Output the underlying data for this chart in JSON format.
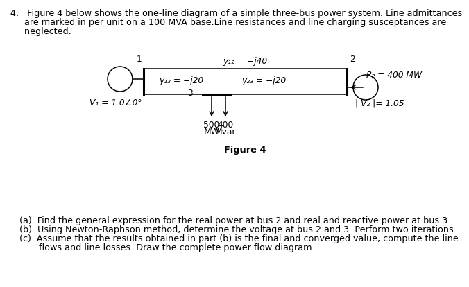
{
  "figure_label": "Figure 4",
  "bus1_label": "1",
  "bus2_label": "2",
  "bus3_label": "3",
  "y12_label": "y₁₂ = −j40",
  "y13_label": "y₁₃ = −j20",
  "y23_label": "y₂₃ = −j20",
  "V1_label": "V₁ = 1.0∠0°",
  "V2_label": "| V₂ |= 1.05",
  "P2_label": "P₂ = 400 MW",
  "P3_label": "500",
  "P3_unit": "MW",
  "Q3_label": "400",
  "Q3_unit": "Mvar",
  "questions": [
    "(a)  Find the general expression for the real power at bus 2 and real and reactive power at bus 3.",
    "(b)  Using Newton-Raphson method, determine the voltage at bus 2 and 3. Perform two iterations.",
    "(c)  Assume that the results obtained in part (b) is the final and converged value, compute the line",
    "      flows and line losses. Draw the complete power flow diagram."
  ],
  "header_line1": "4.   Figure 4 below shows the one-line diagram of a simple three-bus power system. Line admittances",
  "header_line2": "     are marked in per unit on a 100 MVA base.Line resistances and line charging susceptances are",
  "header_line3": "     neglected.",
  "bg_color": "#ffffff",
  "line_color": "#000000",
  "text_color": "#000000",
  "font_size_main": 9.2,
  "font_size_diagram": 8.8
}
